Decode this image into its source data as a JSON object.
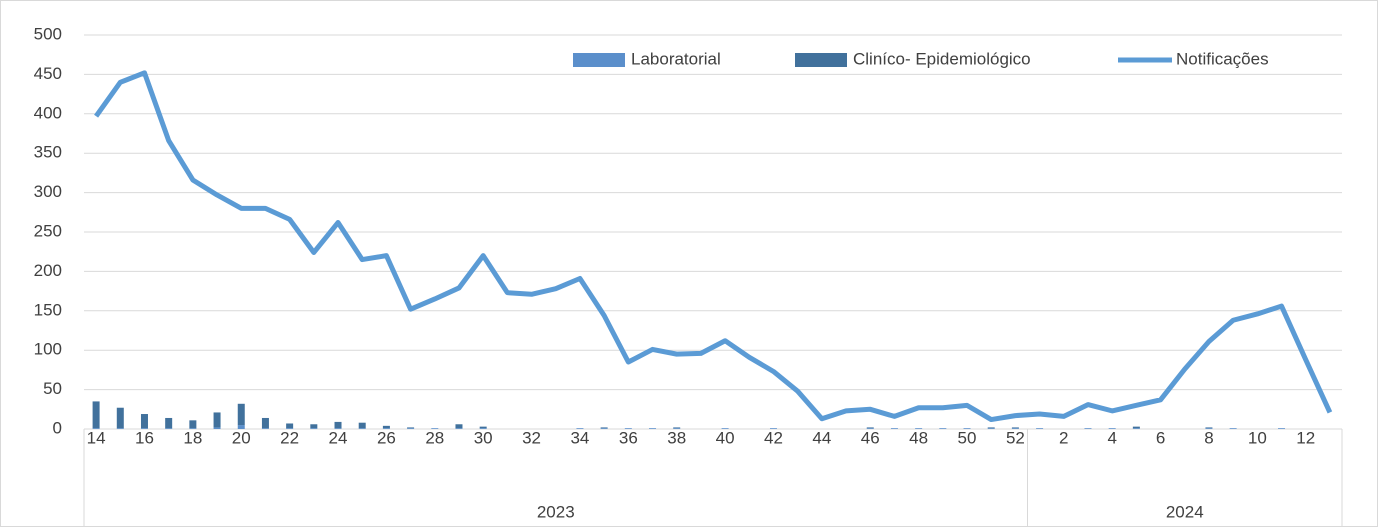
{
  "chart_data": {
    "type": "bar-line",
    "groups": [
      {
        "name": "2023",
        "categories": [
          14,
          null,
          16,
          null,
          18,
          null,
          20,
          null,
          22,
          null,
          24,
          null,
          26,
          null,
          28,
          null,
          30,
          null,
          32,
          null,
          34,
          null,
          36,
          null,
          38,
          null,
          40,
          null,
          42,
          null,
          44,
          null,
          46,
          null,
          48,
          null,
          50,
          null,
          52
        ]
      },
      {
        "name": "2024",
        "categories": [
          null,
          2,
          null,
          4,
          null,
          6,
          null,
          8,
          null,
          10,
          null,
          12,
          null
        ]
      }
    ],
    "series": [
      {
        "name": "Laboratorial",
        "kind": "bar",
        "color": "#5b8fcb",
        "values": [
          1,
          1,
          1,
          1,
          1,
          2,
          5,
          1,
          1,
          1,
          1,
          1,
          1,
          1,
          1,
          1,
          1,
          0,
          0,
          0,
          1,
          1,
          1,
          1,
          1,
          0,
          1,
          0,
          1,
          0,
          0,
          0,
          1,
          1,
          1,
          1,
          1,
          1,
          1,
          1,
          0,
          1,
          1,
          1,
          0,
          0,
          1,
          1,
          0,
          1,
          0,
          0
        ]
      },
      {
        "name": "Cliníco- Epidemiológico",
        "kind": "bar",
        "color": "#41719c",
        "values": [
          34,
          26,
          18,
          13,
          10,
          19,
          27,
          13,
          6,
          5,
          8,
          7,
          3,
          1,
          0,
          5,
          2,
          0,
          0,
          0,
          0,
          1,
          0,
          0,
          1,
          0,
          0,
          0,
          0,
          0,
          0,
          0,
          1,
          0,
          0,
          0,
          0,
          1,
          1,
          0,
          0,
          0,
          0,
          2,
          0,
          0,
          1,
          0,
          0,
          0,
          0,
          0
        ]
      },
      {
        "name": "Notificações",
        "kind": "line",
        "color": "#5b9bd5",
        "values": [
          397,
          440,
          452,
          366,
          316,
          297,
          280,
          280,
          266,
          224,
          262,
          215,
          220,
          152,
          165,
          179,
          220,
          173,
          171,
          178,
          191,
          144,
          85,
          101,
          95,
          96,
          112,
          91,
          73,
          48,
          13,
          23,
          25,
          16,
          27,
          27,
          30,
          12,
          17,
          19,
          16,
          31,
          23,
          30,
          37,
          76,
          111,
          138,
          146,
          156,
          88,
          21
        ]
      }
    ],
    "ylim": [
      0,
      500
    ],
    "yticks": [
      0,
      50,
      100,
      150,
      200,
      250,
      300,
      350,
      400,
      450,
      500
    ],
    "grid": true,
    "legend": "top-right"
  }
}
